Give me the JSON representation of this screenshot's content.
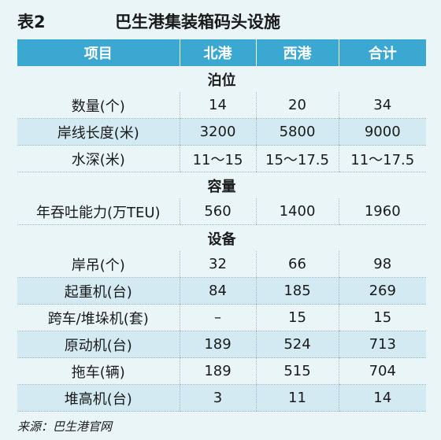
{
  "header": {
    "table_label": "表2",
    "title": "巴生港集装箱码头设施"
  },
  "columns": [
    "项目",
    "北港",
    "西港",
    "合计"
  ],
  "sections": [
    {
      "name": "泊位",
      "rows": [
        [
          "数量(个)",
          "14",
          "20",
          "34"
        ],
        [
          "岸线长度(米)",
          "3200",
          "5800",
          "9000"
        ],
        [
          "水深(米)",
          "11～15",
          "15～17.5",
          "11～17.5"
        ]
      ]
    },
    {
      "name": "容量",
      "rows": [
        [
          "年吞吐能力(万TEU)",
          "560",
          "1400",
          "1960"
        ]
      ]
    },
    {
      "name": "设备",
      "rows": [
        [
          "岸吊(个)",
          "32",
          "66",
          "98"
        ],
        [
          "起重机(台)",
          "84",
          "185",
          "269"
        ],
        [
          "跨车/堆垛机(套)",
          "–",
          "15",
          "15"
        ],
        [
          "原动机(台)",
          "189",
          "524",
          "713"
        ],
        [
          "拖车(辆)",
          "189",
          "515",
          "704"
        ],
        [
          "堆高机(台)",
          "3",
          "11",
          "14"
        ]
      ]
    }
  ],
  "footer": {
    "source": "来源：巴生港官网"
  },
  "colors": {
    "header_bg": "#3ba8d2",
    "alt_row": "#d4eaf2",
    "page_bg": "#eaf5f8"
  }
}
